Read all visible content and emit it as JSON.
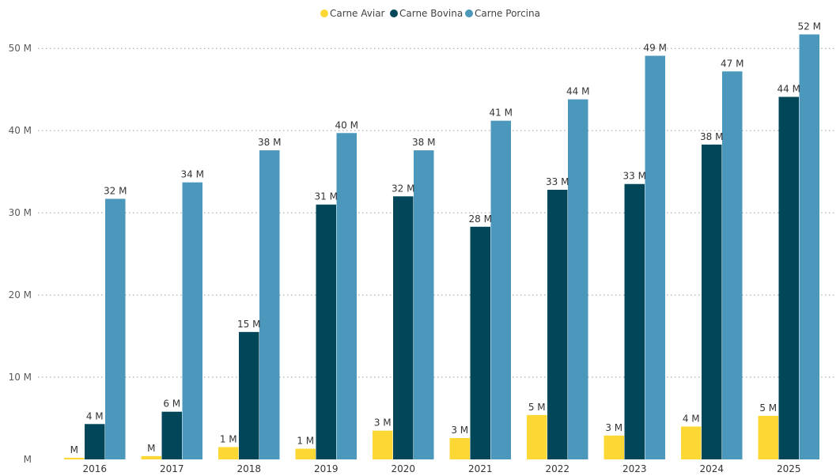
{
  "chart_data": {
    "type": "bar",
    "title": "",
    "xlabel": "",
    "ylabel": "",
    "categories": [
      "2016",
      "2017",
      "2018",
      "2019",
      "2020",
      "2021",
      "2022",
      "2023",
      "2024",
      "2025"
    ],
    "y_ticks": [
      {
        "value": 0,
        "label": "M"
      },
      {
        "value": 10,
        "label": "10 M"
      },
      {
        "value": 20,
        "label": "20 M"
      },
      {
        "value": 30,
        "label": "30 M"
      },
      {
        "value": 40,
        "label": "40 M"
      },
      {
        "value": 50,
        "label": "50 M"
      }
    ],
    "ylim": [
      0,
      53
    ],
    "grid": true,
    "grid_style": "dotted",
    "legend_position": "top-center",
    "series": [
      {
        "name": "Carne Aviar",
        "color": "#FDD835",
        "values": [
          0.2,
          0.4,
          1.5,
          1.3,
          3.5,
          2.6,
          5.4,
          2.9,
          4.0,
          5.3
        ],
        "labels": [
          "M",
          "M",
          "1 M",
          "1 M",
          "3 M",
          "3 M",
          "5 M",
          "3 M",
          "4 M",
          "5 M"
        ]
      },
      {
        "name": "Carne Bovina",
        "color": "#024759",
        "values": [
          4.3,
          5.8,
          15.5,
          31.0,
          32.0,
          28.3,
          32.8,
          33.5,
          38.3,
          44.1
        ],
        "labels": [
          "4 M",
          "6 M",
          "15 M",
          "31 M",
          "32 M",
          "28 M",
          "33 M",
          "33 M",
          "38 M",
          "44 M"
        ]
      },
      {
        "name": "Carne Porcina",
        "color": "#4B98BC",
        "values": [
          31.7,
          33.7,
          37.6,
          39.7,
          37.6,
          41.2,
          43.8,
          49.1,
          47.2,
          51.7
        ],
        "labels": [
          "32 M",
          "34 M",
          "38 M",
          "40 M",
          "38 M",
          "41 M",
          "44 M",
          "49 M",
          "47 M",
          "52 M"
        ]
      }
    ]
  }
}
